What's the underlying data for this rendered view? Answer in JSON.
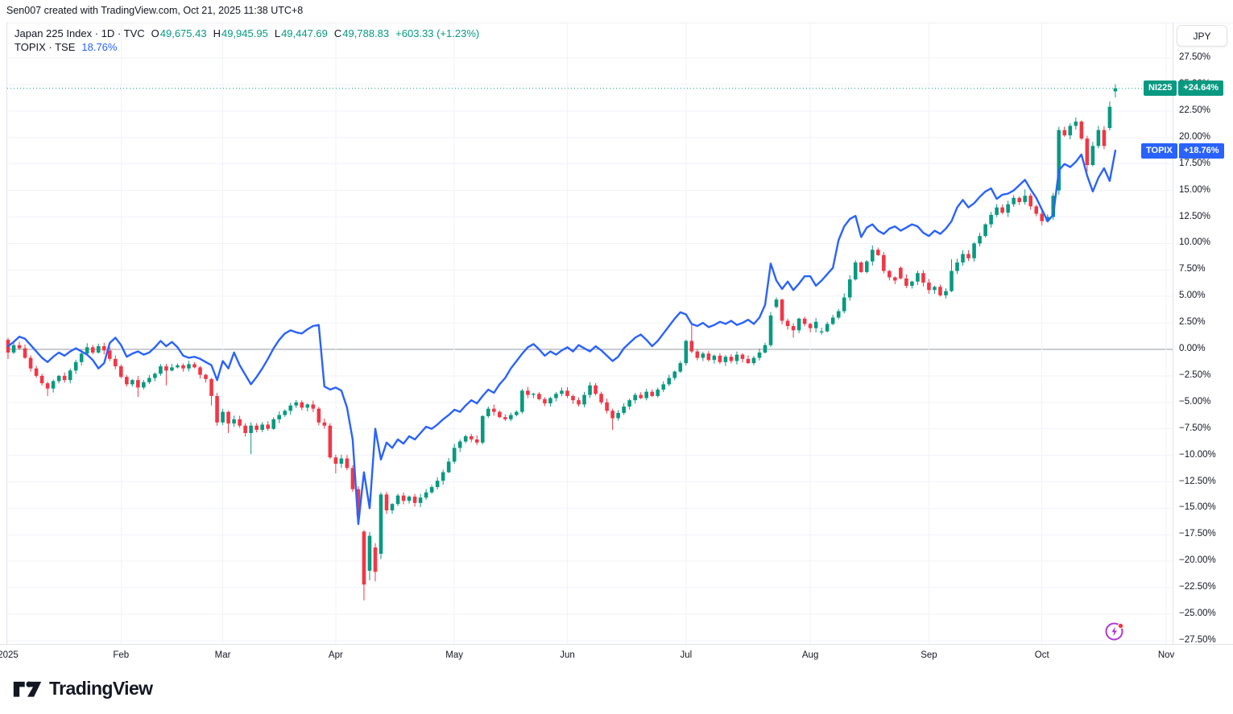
{
  "header": {
    "caption": "Sen007 created with TradingView.com, Oct 21, 2025 11:38 UTC+8"
  },
  "legend": {
    "row1": {
      "title": "Japan 225 Index · 1D · TVC",
      "o_key": "O",
      "o_val": "49,675.43",
      "h_key": "H",
      "h_val": "49,945.95",
      "l_key": "L",
      "l_val": "49,447.69",
      "c_key": "C",
      "c_val": "49,788.83",
      "change": "+603.33 (+1.23%)"
    },
    "row2": {
      "title": "TOPIX · TSE",
      "value": "18.76%"
    }
  },
  "axis": {
    "currency": "JPY",
    "y_ticks": [
      "27.50%",
      "25.00%",
      "22.50%",
      "20.00%",
      "17.50%",
      "15.00%",
      "12.50%",
      "10.00%",
      "7.50%",
      "5.00%",
      "2.50%",
      "0.00%",
      "−2.50%",
      "−5.00%",
      "−7.50%",
      "−10.00%",
      "−12.50%",
      "−15.00%",
      "−17.50%",
      "−20.00%",
      "−22.50%",
      "−25.00%",
      "−27.50%"
    ]
  },
  "badges": {
    "ni225": {
      "label": "NI225",
      "value": "+24.64%",
      "pct": 24.64,
      "color": "#089981"
    },
    "topix": {
      "label": "TOPIX",
      "value": "+18.76%",
      "pct": 18.76,
      "color": "#2962FF"
    }
  },
  "footer": {
    "logo_text": "TradingView"
  },
  "colors": {
    "up": "#089981",
    "down": "#F23645",
    "line": "#2962FF",
    "grid": "#F0F3FA",
    "zero_line": "#9598A1",
    "border": "#E0E3EB",
    "text": "#131722",
    "background": "#FFFFFF",
    "flash_icon": "#B136D9",
    "flash_dot": "#F23645"
  },
  "chart_data": {
    "type": "mixed",
    "title": "Japan 225 Index (candles) vs TOPIX (line), % change, 2025 YTD, daily",
    "x_axis": {
      "unit": "trading-day",
      "start_date": "2025-01-06",
      "end_date": "2025-10-21",
      "month_ticks": [
        {
          "label": "2025",
          "day": 0
        },
        {
          "label": "Feb",
          "day": 20
        },
        {
          "label": "Mar",
          "day": 38
        },
        {
          "label": "Apr",
          "day": 58
        },
        {
          "label": "May",
          "day": 79
        },
        {
          "label": "Jun",
          "day": 99
        },
        {
          "label": "Jul",
          "day": 120
        },
        {
          "label": "Aug",
          "day": 142
        },
        {
          "label": "Sep",
          "day": 163
        },
        {
          "label": "Oct",
          "day": 183
        },
        {
          "label": "Nov",
          "day": 205
        }
      ]
    },
    "y_axis": {
      "min": -27.5,
      "max": 27.5,
      "step": 2.5,
      "unit": "%",
      "zero_line": true,
      "grid": true
    },
    "series": [
      {
        "name": "NI225",
        "type": "candlestick",
        "unit": "percent",
        "up_color": "#089981",
        "down_color": "#F23645",
        "last_value": 24.64,
        "closes": [
          -0.3,
          0.4,
          0.1,
          -0.8,
          -1.8,
          -2.5,
          -3.2,
          -3.7,
          -3.0,
          -2.5,
          -2.9,
          -2.0,
          -1.2,
          -0.4,
          0.2,
          -0.3,
          0.3,
          -0.1,
          -0.9,
          -1.6,
          -2.6,
          -3.3,
          -2.9,
          -3.6,
          -3.1,
          -2.7,
          -2.3,
          -1.6,
          -2.0,
          -1.7,
          -1.5,
          -1.8,
          -1.4,
          -1.7,
          -2.4,
          -2.8,
          -4.4,
          -6.9,
          -5.9,
          -7.0,
          -6.6,
          -7.2,
          -7.9,
          -7.2,
          -7.6,
          -7.1,
          -7.5,
          -6.6,
          -6.2,
          -5.8,
          -5.3,
          -5.0,
          -5.5,
          -5.2,
          -5.6,
          -6.9,
          -7.2,
          -10.2,
          -10.8,
          -10.3,
          -11.2,
          -13.2,
          -15.7,
          -22.2,
          -17.6,
          -21.0,
          -13.7,
          -15.2,
          -14.6,
          -13.8,
          -14.3,
          -13.9,
          -14.5,
          -14.0,
          -13.5,
          -13.0,
          -12.4,
          -11.6,
          -10.6,
          -9.3,
          -8.7,
          -8.2,
          -8.5,
          -8.8,
          -6.3,
          -5.6,
          -5.9,
          -6.4,
          -6.6,
          -6.2,
          -5.9,
          -3.9,
          -4.3,
          -4.2,
          -4.7,
          -5.1,
          -4.6,
          -4.2,
          -3.9,
          -4.4,
          -4.8,
          -5.2,
          -4.3,
          -3.4,
          -4.2,
          -5.0,
          -5.8,
          -6.5,
          -6.0,
          -5.4,
          -4.8,
          -4.3,
          -4.6,
          -4.0,
          -4.4,
          -3.8,
          -3.3,
          -2.7,
          -2.1,
          -1.3,
          0.8,
          -0.2,
          -0.8,
          -0.4,
          -1.0,
          -0.6,
          -1.2,
          -0.7,
          -1.1,
          -0.5,
          -0.9,
          -1.3,
          -0.8,
          -0.3,
          0.4,
          3.2,
          4.7,
          2.7,
          2.2,
          1.8,
          2.9,
          2.4,
          2.0,
          2.6,
          1.7,
          2.4,
          3.0,
          3.6,
          4.9,
          6.6,
          8.2,
          7.3,
          8.3,
          9.4,
          8.9,
          7.4,
          6.8,
          6.5,
          6.7,
          6.0,
          6.4,
          7.2,
          6.3,
          5.6,
          5.9,
          5.1,
          5.5,
          7.4,
          8.2,
          9.0,
          8.6,
          10.0,
          10.7,
          11.8,
          12.7,
          13.4,
          12.9,
          13.7,
          14.3,
          13.9,
          14.5,
          13.5,
          12.8,
          12.1,
          12.5,
          14.5,
          20.7,
          20.2,
          21.1,
          21.5,
          19.9,
          17.4,
          19.2,
          20.7,
          19.2,
          22.9,
          24.64
        ],
        "open_overrides": {
          "0": 0.9,
          "63": -17.2,
          "64": -20.9,
          "65": -18.7,
          "66": -19.3,
          "136": 4.0,
          "144": 1.6,
          "158": 7.7,
          "186": 15.0,
          "195": 20.9,
          "196": 24.36
        },
        "high_overrides": {
          "121": 2.4,
          "136": 4.9,
          "153": 9.8,
          "167": 8.5,
          "180": 15.1,
          "186": 21.0,
          "189": 21.9,
          "193": 21.1,
          "195": 23.4,
          "196": 25.03
        },
        "low_overrides": {
          "0": -0.9,
          "7": -4.4,
          "23": -4.5,
          "28": -3.4,
          "36": -5.3,
          "39": -7.9,
          "43": -9.9,
          "58": -11.7,
          "62": -16.4,
          "63": -23.7,
          "64": -21.8,
          "65": -21.9,
          "66": -19.8,
          "107": -7.6,
          "139": 1.1,
          "186": 14.6,
          "191": 16.8,
          "194": 18.9,
          "196": 23.79
        }
      },
      {
        "name": "TOPIX",
        "type": "line",
        "unit": "percent",
        "color": "#2962FF",
        "last_value": 18.76,
        "values": [
          0.3,
          0.7,
          1.2,
          1.0,
          0.4,
          -0.2,
          -0.8,
          -1.2,
          -0.7,
          -0.3,
          -0.6,
          -0.2,
          0.1,
          -0.2,
          -0.5,
          -1.0,
          -1.8,
          -1.3,
          0.6,
          1.1,
          0.4,
          -0.7,
          -0.4,
          -0.2,
          -0.5,
          -0.3,
          0.2,
          0.8,
          0.3,
          0.7,
          0.2,
          -0.6,
          -0.8,
          -0.7,
          -0.9,
          -1.2,
          -1.5,
          -2.9,
          -1.1,
          -1.8,
          -0.3,
          -1.5,
          -2.4,
          -3.3,
          -2.6,
          -1.8,
          -0.9,
          0.1,
          0.9,
          1.5,
          1.8,
          1.6,
          1.5,
          1.9,
          2.2,
          2.3,
          -3.5,
          -3.8,
          -3.6,
          -3.9,
          -5.5,
          -8.5,
          -16.5,
          -11.6,
          -15.0,
          -7.5,
          -10.4,
          -8.8,
          -9.3,
          -8.5,
          -8.9,
          -8.2,
          -8.5,
          -7.9,
          -7.3,
          -7.5,
          -7.1,
          -6.6,
          -6.2,
          -5.7,
          -5.9,
          -5.3,
          -4.8,
          -5.1,
          -4.4,
          -3.8,
          -4.1,
          -3.3,
          -2.7,
          -1.8,
          -1.1,
          -0.4,
          0.2,
          0.5,
          0.0,
          -0.6,
          -0.2,
          -0.5,
          -0.1,
          0.2,
          -0.2,
          0.4,
          0.1,
          -0.2,
          0.3,
          -0.1,
          -0.6,
          -1.1,
          -0.7,
          0.1,
          0.6,
          1.1,
          1.4,
          0.9,
          0.3,
          0.8,
          1.5,
          2.2,
          2.9,
          3.5,
          3.3,
          2.4,
          2.2,
          2.5,
          2.1,
          2.3,
          2.6,
          2.4,
          2.7,
          2.3,
          2.5,
          2.8,
          2.4,
          3.0,
          4.2,
          8.1,
          6.5,
          5.7,
          6.4,
          5.6,
          6.2,
          6.9,
          6.9,
          6.0,
          6.5,
          7.1,
          7.7,
          10.3,
          11.6,
          12.3,
          12.6,
          10.6,
          11.5,
          11.8,
          11.2,
          10.9,
          11.4,
          11.6,
          11.2,
          11.5,
          11.8,
          11.6,
          11.0,
          10.7,
          11.2,
          10.9,
          11.4,
          12.1,
          13.4,
          14.1,
          13.4,
          13.8,
          14.4,
          14.9,
          15.2,
          14.2,
          14.6,
          14.7,
          15.0,
          15.5,
          16.0,
          15.1,
          14.3,
          13.2,
          12.1,
          12.7,
          16.9,
          17.5,
          17.2,
          17.7,
          18.4,
          16.4,
          14.9,
          16.2,
          17.1,
          15.9,
          18.76
        ]
      }
    ]
  }
}
